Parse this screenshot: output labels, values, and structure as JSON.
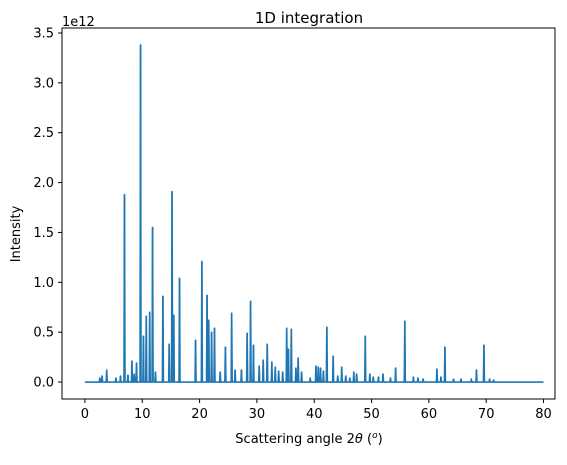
{
  "chart_data": {
    "type": "line",
    "title": "1D integration",
    "xlabel": "Scattering angle 2θ (°)",
    "xlabel_parts": {
      "prefix": "Scattering angle 2",
      "theta": "θ",
      "suffix": " (",
      "degree": "o",
      "close": ")"
    },
    "ylabel": "Intensity",
    "y_scale_label": "1e12",
    "xlim": [
      -4,
      82
    ],
    "ylim": [
      -0.17,
      3.55
    ],
    "xticks": [
      0,
      10,
      20,
      30,
      40,
      50,
      60,
      70,
      80
    ],
    "xtick_labels": [
      "0",
      "10",
      "20",
      "30",
      "40",
      "50",
      "60",
      "70",
      "80"
    ],
    "yticks": [
      0.0,
      0.5,
      1.0,
      1.5,
      2.0,
      2.5,
      3.0,
      3.5
    ],
    "ytick_labels": [
      "0.0",
      "0.5",
      "1.0",
      "1.5",
      "2.0",
      "2.5",
      "3.0",
      "3.5"
    ],
    "grid": false,
    "line_color": "#1f77b4",
    "x_range": [
      0,
      80
    ],
    "baseline": 0.0,
    "peaks": [
      [
        2.6,
        0.04
      ],
      [
        3.0,
        0.06
      ],
      [
        3.8,
        0.12
      ],
      [
        5.4,
        0.04
      ],
      [
        6.2,
        0.06
      ],
      [
        6.9,
        1.88
      ],
      [
        7.5,
        0.07
      ],
      [
        8.2,
        0.21
      ],
      [
        8.6,
        0.08
      ],
      [
        9.0,
        0.19
      ],
      [
        9.7,
        3.38
      ],
      [
        10.2,
        0.46
      ],
      [
        10.7,
        0.66
      ],
      [
        11.3,
        0.7
      ],
      [
        11.8,
        1.55
      ],
      [
        12.3,
        0.1
      ],
      [
        13.6,
        0.86
      ],
      [
        14.7,
        0.38
      ],
      [
        15.2,
        1.91
      ],
      [
        15.5,
        0.67
      ],
      [
        16.5,
        1.04
      ],
      [
        19.3,
        0.42
      ],
      [
        20.4,
        1.21
      ],
      [
        21.3,
        0.87
      ],
      [
        21.6,
        0.62
      ],
      [
        22.1,
        0.5
      ],
      [
        22.6,
        0.54
      ],
      [
        23.6,
        0.1
      ],
      [
        24.5,
        0.35
      ],
      [
        25.6,
        0.69
      ],
      [
        26.2,
        0.12
      ],
      [
        27.3,
        0.12
      ],
      [
        28.3,
        0.49
      ],
      [
        28.9,
        0.81
      ],
      [
        29.4,
        0.37
      ],
      [
        30.4,
        0.16
      ],
      [
        31.1,
        0.22
      ],
      [
        31.8,
        0.38
      ],
      [
        32.6,
        0.2
      ],
      [
        33.2,
        0.15
      ],
      [
        33.8,
        0.11
      ],
      [
        34.5,
        0.1
      ],
      [
        35.2,
        0.54
      ],
      [
        35.5,
        0.33
      ],
      [
        36.0,
        0.53
      ],
      [
        36.8,
        0.14
      ],
      [
        37.2,
        0.24
      ],
      [
        37.8,
        0.1
      ],
      [
        39.3,
        0.04
      ],
      [
        40.3,
        0.16
      ],
      [
        40.7,
        0.15
      ],
      [
        41.1,
        0.14
      ],
      [
        41.6,
        0.11
      ],
      [
        42.2,
        0.55
      ],
      [
        43.3,
        0.26
      ],
      [
        44.1,
        0.06
      ],
      [
        44.8,
        0.15
      ],
      [
        45.5,
        0.06
      ],
      [
        46.2,
        0.04
      ],
      [
        46.9,
        0.1
      ],
      [
        47.4,
        0.08
      ],
      [
        48.9,
        0.46
      ],
      [
        49.7,
        0.08
      ],
      [
        50.3,
        0.05
      ],
      [
        51.2,
        0.05
      ],
      [
        52.0,
        0.08
      ],
      [
        53.3,
        0.04
      ],
      [
        54.2,
        0.14
      ],
      [
        55.8,
        0.61
      ],
      [
        57.3,
        0.05
      ],
      [
        58.1,
        0.04
      ],
      [
        59.0,
        0.03
      ],
      [
        61.4,
        0.13
      ],
      [
        62.1,
        0.05
      ],
      [
        62.8,
        0.35
      ],
      [
        64.3,
        0.03
      ],
      [
        65.6,
        0.03
      ],
      [
        67.4,
        0.03
      ],
      [
        68.3,
        0.12
      ],
      [
        69.6,
        0.37
      ],
      [
        70.6,
        0.03
      ],
      [
        71.3,
        0.02
      ]
    ]
  }
}
